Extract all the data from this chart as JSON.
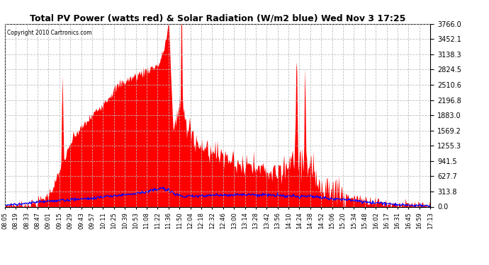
{
  "title": "Total PV Power (watts red) & Solar Radiation (W/m2 blue) Wed Nov 3 17:25",
  "copyright": "Copyright 2010 Cartronics.com",
  "background_color": "#ffffff",
  "plot_bg_color": "#ffffff",
  "grid_color": "#bbbbbb",
  "red_fill_color": "#ff0000",
  "blue_line_color": "#0000ff",
  "ymax": 3766.0,
  "ymin": 0.0,
  "yticks": [
    0.0,
    313.8,
    627.7,
    941.5,
    1255.3,
    1569.2,
    1883.0,
    2196.8,
    2510.6,
    2824.5,
    3138.3,
    3452.1,
    3766.0
  ],
  "x_labels": [
    "08:05",
    "08:19",
    "08:33",
    "08:47",
    "09:01",
    "09:15",
    "09:29",
    "09:43",
    "09:57",
    "10:11",
    "10:25",
    "10:39",
    "10:53",
    "11:08",
    "11:22",
    "11:36",
    "11:50",
    "12:04",
    "12:18",
    "12:32",
    "12:46",
    "13:00",
    "13:14",
    "13:28",
    "13:42",
    "13:56",
    "14:10",
    "14:24",
    "14:38",
    "14:52",
    "15:06",
    "15:20",
    "15:34",
    "15:48",
    "16:02",
    "16:17",
    "16:31",
    "16:45",
    "16:59",
    "17:13"
  ],
  "num_points": 600
}
